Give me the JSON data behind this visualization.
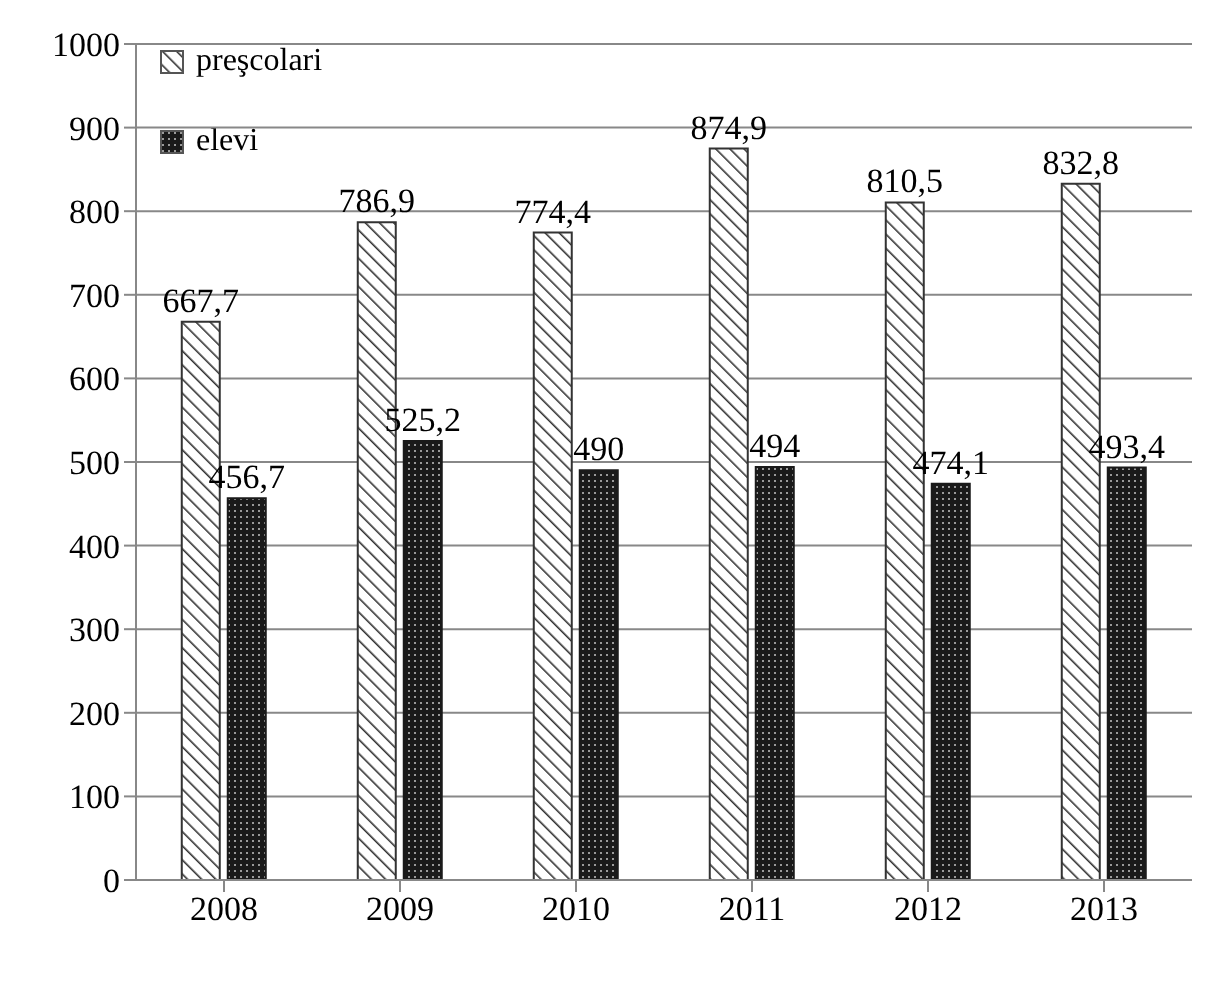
{
  "chart_data": {
    "type": "bar",
    "categories": [
      "2008",
      "2009",
      "2010",
      "2011",
      "2012",
      "2013"
    ],
    "series": [
      {
        "name": "preşcolari",
        "color": "#333333",
        "values": [
          667.7,
          786.9,
          774.4,
          874.9,
          810.5,
          832.8
        ],
        "value_labels": [
          "667,7",
          "786,9",
          "774,4",
          "874,9",
          "810,5",
          "832,8"
        ]
      },
      {
        "name": "elevi",
        "color": "#1a1a1a",
        "values": [
          456.7,
          525.2,
          490,
          494,
          474.1,
          493.4
        ],
        "value_labels": [
          "456,7",
          "525,2",
          "490",
          "494",
          "474,1",
          "493,4"
        ]
      }
    ],
    "ylim": [
      0,
      1000
    ],
    "yticks": [
      0,
      100,
      200,
      300,
      400,
      500,
      600,
      700,
      800,
      900,
      1000
    ],
    "grid": "y",
    "legend": "top left"
  }
}
